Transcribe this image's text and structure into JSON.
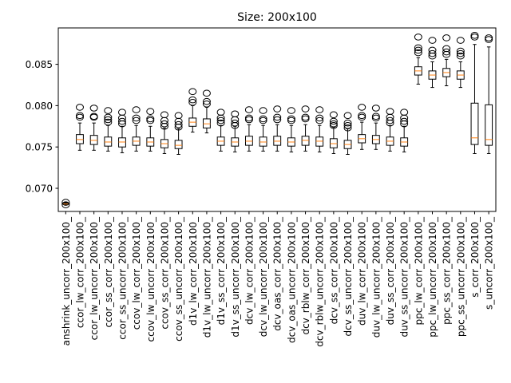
{
  "chart_data": {
    "type": "boxplot",
    "title": "Size: 200x100",
    "xlabel": "",
    "ylabel": "",
    "ylim": [
      0.0672,
      0.0894
    ],
    "yticks": [
      0.07,
      0.075,
      0.08,
      0.085
    ],
    "ytick_labels": [
      "0.070",
      "0.075",
      "0.080",
      "0.085"
    ],
    "grid": false,
    "colors": {
      "box": "#000000",
      "median": "#ff7f0e",
      "flier": "#000000"
    },
    "series": [
      {
        "name": "anshrink_uncorr_200x100_",
        "q1": 0.0681,
        "median": 0.0681,
        "q3": 0.0682,
        "whislo": 0.068,
        "whishi": 0.0683,
        "fliers": [
          0.068,
          0.0683
        ]
      },
      {
        "name": "ccor_lw_corr_200x100_",
        "q1": 0.0754,
        "median": 0.0759,
        "q3": 0.0765,
        "whislo": 0.0746,
        "whishi": 0.0779,
        "fliers": [
          0.0786,
          0.0788,
          0.0798
        ]
      },
      {
        "name": "ccor_lw_uncorr_200x100_",
        "q1": 0.0753,
        "median": 0.0758,
        "q3": 0.0764,
        "whislo": 0.0746,
        "whishi": 0.0779,
        "fliers": [
          0.0786,
          0.0787,
          0.0797
        ]
      },
      {
        "name": "ccor_ss_corr_200x100_",
        "q1": 0.0751,
        "median": 0.0756,
        "q3": 0.0762,
        "whislo": 0.0745,
        "whishi": 0.0776,
        "fliers": [
          0.078,
          0.0783,
          0.0786,
          0.0794
        ]
      },
      {
        "name": "ccor_ss_uncorr_200x100_",
        "q1": 0.075,
        "median": 0.0756,
        "q3": 0.0761,
        "whislo": 0.0743,
        "whishi": 0.0775,
        "fliers": [
          0.0778,
          0.0781,
          0.0785,
          0.0792
        ]
      },
      {
        "name": "ccov_lw_corr_200x100_",
        "q1": 0.0752,
        "median": 0.0757,
        "q3": 0.0762,
        "whislo": 0.0745,
        "whishi": 0.0776,
        "fliers": [
          0.0782,
          0.0785,
          0.0795
        ]
      },
      {
        "name": "ccov_lw_uncorr_200x100_",
        "q1": 0.0751,
        "median": 0.0756,
        "q3": 0.0761,
        "whislo": 0.0745,
        "whishi": 0.0775,
        "fliers": [
          0.0782,
          0.0784,
          0.0793
        ]
      },
      {
        "name": "ccov_ss_corr_200x100_",
        "q1": 0.0749,
        "median": 0.0754,
        "q3": 0.0759,
        "whislo": 0.0742,
        "whishi": 0.0773,
        "fliers": [
          0.0775,
          0.0778,
          0.0782,
          0.0789
        ]
      },
      {
        "name": "ccov_ss_uncorr_200x100_",
        "q1": 0.0748,
        "median": 0.0752,
        "q3": 0.0758,
        "whislo": 0.0741,
        "whishi": 0.0772,
        "fliers": [
          0.0774,
          0.0777,
          0.0781,
          0.0788
        ]
      },
      {
        "name": "d1v_lw_corr_200x100_",
        "q1": 0.0775,
        "median": 0.078,
        "q3": 0.0785,
        "whislo": 0.0768,
        "whishi": 0.08,
        "fliers": [
          0.0804,
          0.0807,
          0.0817
        ]
      },
      {
        "name": "d1v_lw_uncorr_200x100_",
        "q1": 0.0773,
        "median": 0.0778,
        "q3": 0.0784,
        "whislo": 0.0767,
        "whishi": 0.0798,
        "fliers": [
          0.0802,
          0.0805,
          0.0815
        ]
      },
      {
        "name": "d1v_ss_corr_200x100_",
        "q1": 0.0752,
        "median": 0.0757,
        "q3": 0.0762,
        "whislo": 0.0745,
        "whishi": 0.0776,
        "fliers": [
          0.0779,
          0.0782,
          0.0785,
          0.0792
        ]
      },
      {
        "name": "d1v_ss_uncorr_200x100_",
        "q1": 0.0751,
        "median": 0.0756,
        "q3": 0.0761,
        "whislo": 0.0744,
        "whishi": 0.0775,
        "fliers": [
          0.0776,
          0.0779,
          0.0783,
          0.079
        ]
      },
      {
        "name": "dcv_lw_corr_200x100_",
        "q1": 0.0752,
        "median": 0.0757,
        "q3": 0.0763,
        "whislo": 0.0745,
        "whishi": 0.0777,
        "fliers": [
          0.0783,
          0.0785,
          0.0795
        ]
      },
      {
        "name": "dcv_lw_uncorr_200x100_",
        "q1": 0.0751,
        "median": 0.0756,
        "q3": 0.0762,
        "whislo": 0.0745,
        "whishi": 0.0776,
        "fliers": [
          0.0782,
          0.0784,
          0.0794
        ]
      },
      {
        "name": "dcv_oas_corr_200x100_",
        "q1": 0.0752,
        "median": 0.0757,
        "q3": 0.0763,
        "whislo": 0.0745,
        "whishi": 0.0777,
        "fliers": [
          0.0783,
          0.0786,
          0.0796
        ]
      },
      {
        "name": "dcv_oas_uncorr_200x100_",
        "q1": 0.0751,
        "median": 0.0756,
        "q3": 0.0761,
        "whislo": 0.0744,
        "whishi": 0.0776,
        "fliers": [
          0.0782,
          0.0784,
          0.0794
        ]
      },
      {
        "name": "dcv_rblw_corr_200x100_",
        "q1": 0.0752,
        "median": 0.0758,
        "q3": 0.0763,
        "whislo": 0.0745,
        "whishi": 0.0777,
        "fliers": [
          0.0784,
          0.0786,
          0.0796
        ]
      },
      {
        "name": "dcv_rblw_uncorr_200x100_",
        "q1": 0.0751,
        "median": 0.0757,
        "q3": 0.0762,
        "whislo": 0.0744,
        "whishi": 0.0776,
        "fliers": [
          0.0782,
          0.0785,
          0.0795
        ]
      },
      {
        "name": "dcv_ss_corr_200x100_",
        "q1": 0.0749,
        "median": 0.0754,
        "q3": 0.076,
        "whislo": 0.0742,
        "whishi": 0.0774,
        "fliers": [
          0.0776,
          0.0778,
          0.0781,
          0.0789
        ]
      },
      {
        "name": "dcv_ss_uncorr_200x100_",
        "q1": 0.0748,
        "median": 0.0753,
        "q3": 0.0758,
        "whislo": 0.0741,
        "whishi": 0.0772,
        "fliers": [
          0.0773,
          0.0776,
          0.0779,
          0.0788
        ]
      },
      {
        "name": "duv_lw_corr_200x100_",
        "q1": 0.0755,
        "median": 0.076,
        "q3": 0.0765,
        "whislo": 0.0747,
        "whishi": 0.078,
        "fliers": [
          0.0786,
          0.0788,
          0.0798
        ]
      },
      {
        "name": "duv_lw_uncorr_200x100_",
        "q1": 0.0754,
        "median": 0.0759,
        "q3": 0.0764,
        "whislo": 0.0747,
        "whishi": 0.0779,
        "fliers": [
          0.0785,
          0.0787,
          0.0797
        ]
      },
      {
        "name": "duv_ss_corr_200x100_",
        "q1": 0.0752,
        "median": 0.0757,
        "q3": 0.0762,
        "whislo": 0.0745,
        "whishi": 0.0776,
        "fliers": [
          0.0779,
          0.0782,
          0.0786,
          0.0793
        ]
      },
      {
        "name": "duv_ss_uncorr_200x100_",
        "q1": 0.0751,
        "median": 0.0756,
        "q3": 0.0761,
        "whislo": 0.0744,
        "whishi": 0.0775,
        "fliers": [
          0.0778,
          0.0781,
          0.0785,
          0.0792
        ]
      },
      {
        "name": "ppc_lw_corr_200x100_",
        "q1": 0.0837,
        "median": 0.0842,
        "q3": 0.0847,
        "whislo": 0.0826,
        "whishi": 0.0858,
        "fliers": [
          0.0864,
          0.0867,
          0.087,
          0.0883
        ]
      },
      {
        "name": "ppc_lw_uncorr_200x100_",
        "q1": 0.0832,
        "median": 0.0837,
        "q3": 0.0842,
        "whislo": 0.0822,
        "whishi": 0.0853,
        "fliers": [
          0.086,
          0.0863,
          0.0867,
          0.0879
        ]
      },
      {
        "name": "ppc_ss_corr_200x100_",
        "q1": 0.0835,
        "median": 0.084,
        "q3": 0.0845,
        "whislo": 0.0824,
        "whishi": 0.0856,
        "fliers": [
          0.0862,
          0.0865,
          0.0869,
          0.0882
        ]
      },
      {
        "name": "ppc_ss_uncorr_200x100_",
        "q1": 0.0832,
        "median": 0.0837,
        "q3": 0.0842,
        "whislo": 0.0822,
        "whishi": 0.0853,
        "fliers": [
          0.086,
          0.0863,
          0.0866,
          0.0879
        ]
      },
      {
        "name": "s_corr_200x100_",
        "q1": 0.0753,
        "median": 0.0761,
        "q3": 0.0803,
        "whislo": 0.0742,
        "whishi": 0.0874,
        "fliers": [
          0.0883,
          0.0885
        ]
      },
      {
        "name": "s_uncorr_200x100_",
        "q1": 0.0752,
        "median": 0.0759,
        "q3": 0.0801,
        "whislo": 0.0742,
        "whishi": 0.0871,
        "fliers": [
          0.088,
          0.0882
        ]
      }
    ]
  }
}
